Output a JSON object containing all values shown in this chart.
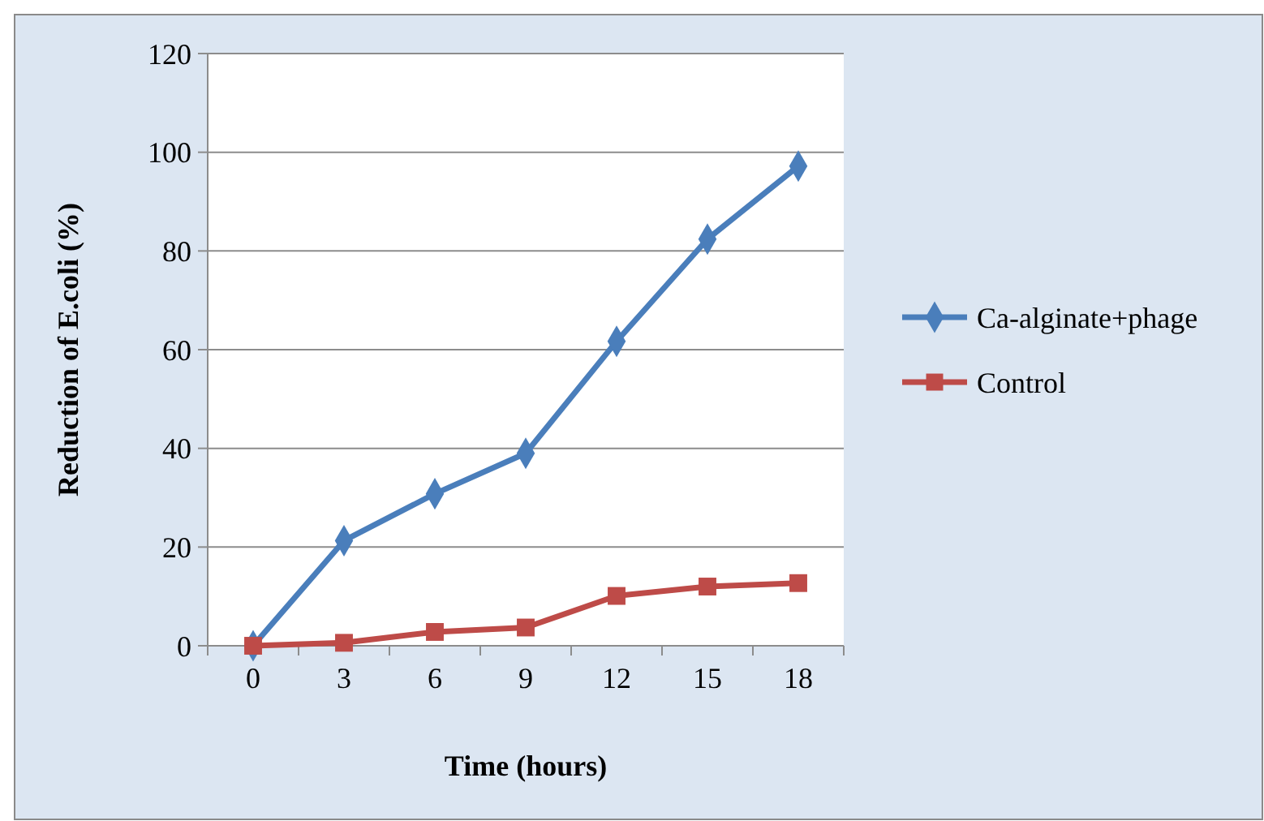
{
  "chart_data": {
    "type": "line",
    "xlabel": "Time (hours)",
    "ylabel": "Reduction of E.coli (%)",
    "categories": [
      "0",
      "3",
      "6",
      "9",
      "12",
      "15",
      "18"
    ],
    "ylim": [
      0,
      120
    ],
    "yticks": [
      0,
      20,
      40,
      60,
      80,
      100,
      120
    ],
    "grid": "y",
    "legend": "right",
    "series": [
      {
        "name": "Ca-alginate+phage",
        "color": "#4a7ebb",
        "marker": "diamond",
        "values": [
          0,
          21.3,
          30.8,
          39.0,
          61.7,
          82.4,
          97.2
        ]
      },
      {
        "name": "Control",
        "color": "#be4b48",
        "marker": "square",
        "values": [
          0,
          0.6,
          2.8,
          3.7,
          10.1,
          12.0,
          12.7
        ]
      }
    ]
  }
}
